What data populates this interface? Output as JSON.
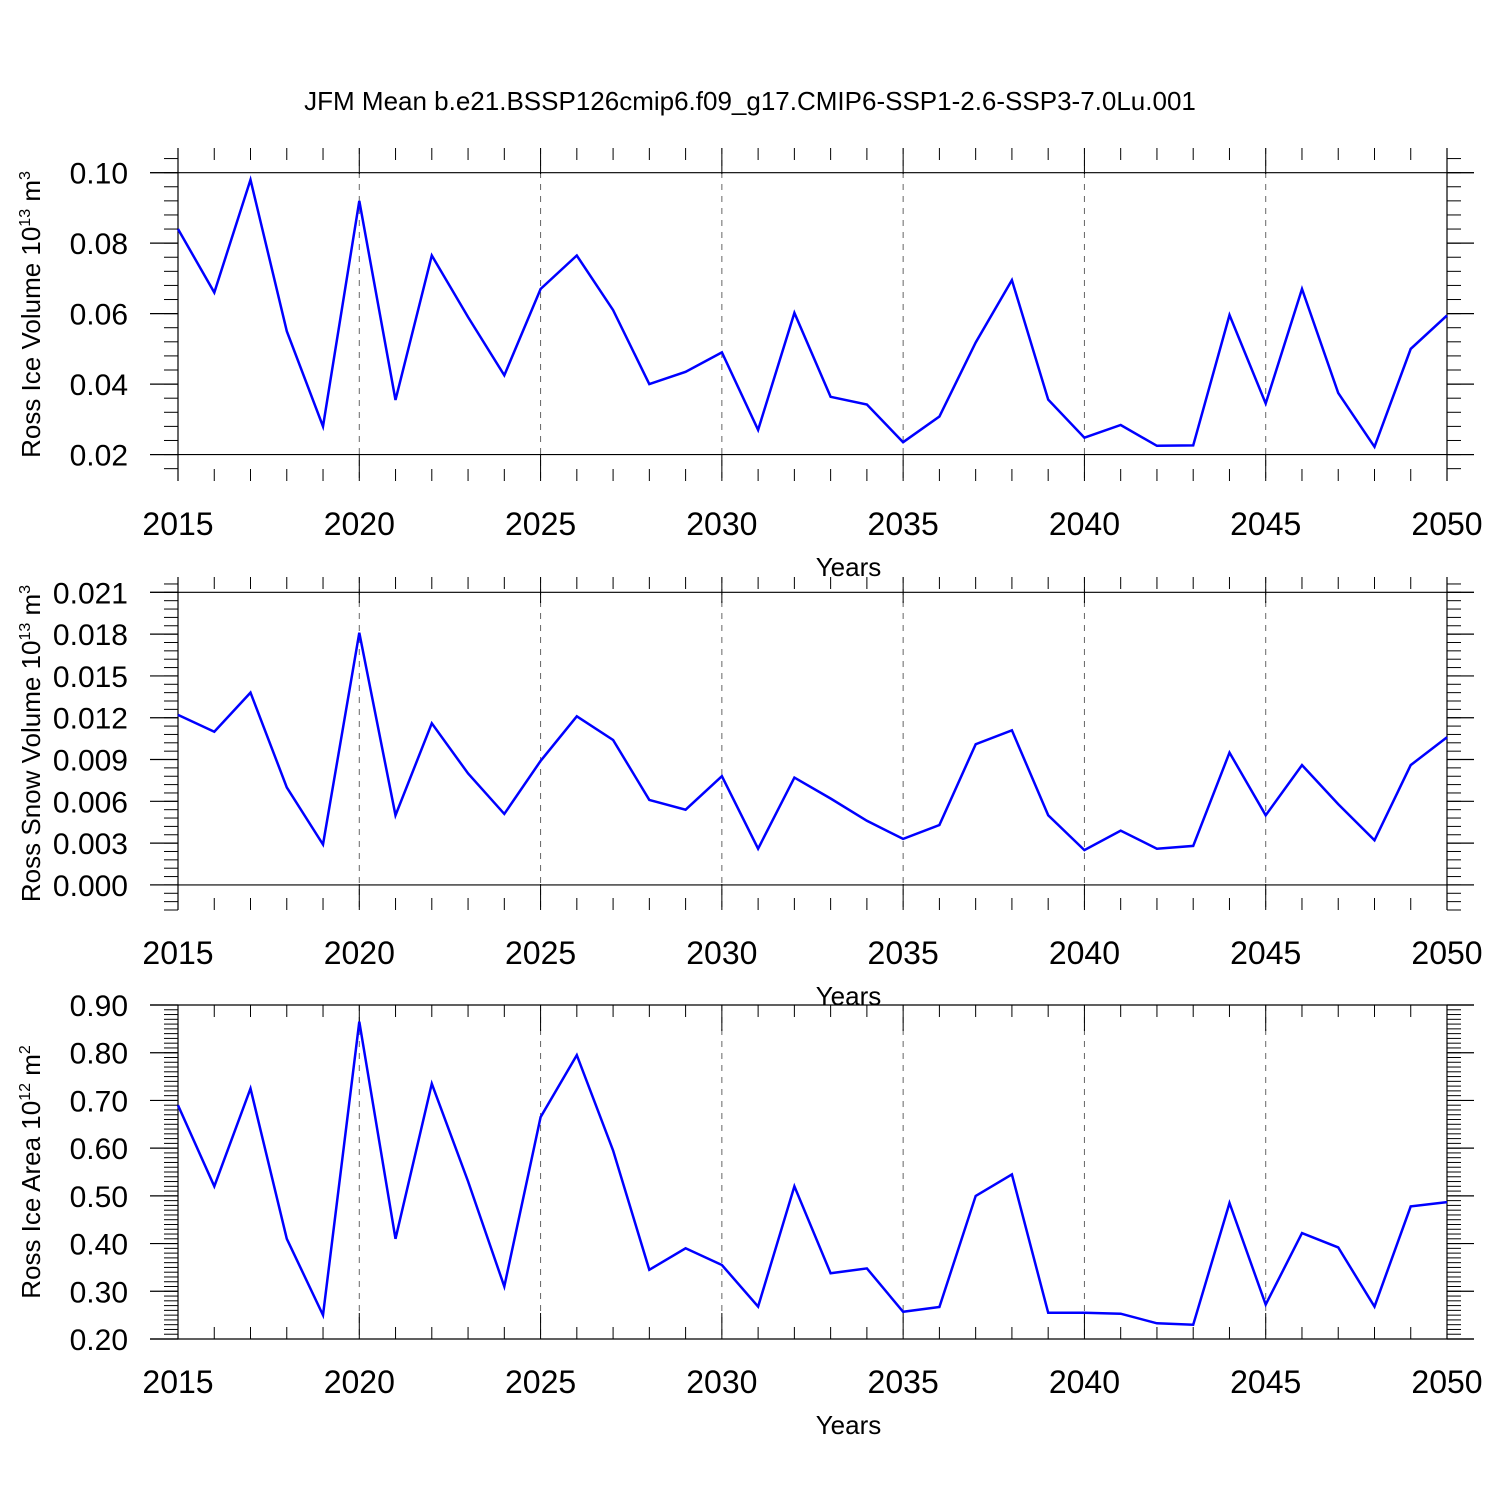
{
  "title": "JFM Mean b.e21.BSSP126cmip6.f09_g17.CMIP6-SSP1-2.6-SSP3-7.0Lu.001",
  "colors": {
    "line": "#0000ff",
    "axis": "#000000",
    "grid": "#666666",
    "background": "#ffffff"
  },
  "chart_data": [
    {
      "type": "line",
      "ylabel": "Ross Ice Volume 10",
      "ylabel_sup": "13",
      "ylabel_unit": "m",
      "ylabel_unit_sup": "3",
      "xlabel": "Years",
      "xlim": [
        2015,
        2050
      ],
      "ylim": [
        0.0125,
        0.107
      ],
      "xticks": [
        2015,
        2020,
        2025,
        2030,
        2035,
        2040,
        2045,
        2050
      ],
      "yticks": [
        "0.02",
        "0.04",
        "0.06",
        "0.08",
        "0.10"
      ],
      "grid": "vertical dashed at major x ticks",
      "series": [
        {
          "x": [
            2015,
            2016,
            2017,
            2018,
            2019,
            2020,
            2021,
            2022,
            2023,
            2024,
            2025,
            2026,
            2027,
            2028,
            2029,
            2030,
            2031,
            2032,
            2033,
            2034,
            2035,
            2036,
            2037,
            2038,
            2039,
            2040,
            2041,
            2042,
            2043,
            2044,
            2045,
            2046,
            2047,
            2048,
            2049,
            2050
          ],
          "values": [
            0.084,
            0.066,
            0.098,
            0.055,
            0.028,
            0.092,
            0.0355,
            0.0765,
            0.059,
            0.0425,
            0.067,
            0.0765,
            0.061,
            0.04,
            0.0435,
            0.049,
            0.027,
            0.0602,
            0.0364,
            0.0342,
            0.0235,
            0.0308,
            0.0518,
            0.0695,
            0.0356,
            0.0248,
            0.0284,
            0.0225,
            0.0226,
            0.0596,
            0.0345,
            0.067,
            0.0375,
            0.0222,
            0.05,
            0.0595
          ]
        }
      ]
    },
    {
      "type": "line",
      "ylabel": "Ross Snow Volume 10",
      "ylabel_sup": "13",
      "ylabel_unit": "m",
      "ylabel_unit_sup": "3",
      "xlabel": "Years",
      "xlim": [
        2015,
        2050
      ],
      "ylim": [
        -0.0018,
        0.0221
      ],
      "xticks": [
        2015,
        2020,
        2025,
        2030,
        2035,
        2040,
        2045,
        2050
      ],
      "yticks": [
        "0.000",
        "0.003",
        "0.006",
        "0.009",
        "0.012",
        "0.015",
        "0.018",
        "0.021"
      ],
      "grid": "vertical dashed at major x ticks",
      "series": [
        {
          "x": [
            2015,
            2016,
            2017,
            2018,
            2019,
            2020,
            2021,
            2022,
            2023,
            2024,
            2025,
            2026,
            2027,
            2028,
            2029,
            2030,
            2031,
            2032,
            2033,
            2034,
            2035,
            2036,
            2037,
            2038,
            2039,
            2040,
            2041,
            2042,
            2043,
            2044,
            2045,
            2046,
            2047,
            2048,
            2049,
            2050
          ],
          "values": [
            0.0122,
            0.011,
            0.0138,
            0.007,
            0.0029,
            0.0181,
            0.005,
            0.0116,
            0.008,
            0.0051,
            0.0089,
            0.0121,
            0.0104,
            0.0061,
            0.0054,
            0.0078,
            0.0026,
            0.0077,
            0.0062,
            0.0046,
            0.0033,
            0.0043,
            0.0101,
            0.0111,
            0.005,
            0.0025,
            0.0039,
            0.0026,
            0.0028,
            0.0095,
            0.005,
            0.0086,
            0.0058,
            0.0032,
            0.0086,
            0.0106
          ]
        }
      ]
    },
    {
      "type": "line",
      "ylabel": "Ross Ice Area 10",
      "ylabel_sup": "12",
      "ylabel_unit": "m",
      "ylabel_unit_sup": "2",
      "xlabel": "Years",
      "xlim": [
        2015,
        2050
      ],
      "ylim": [
        0.2,
        0.9
      ],
      "xticks": [
        2015,
        2020,
        2025,
        2030,
        2035,
        2040,
        2045,
        2050
      ],
      "yticks": [
        "0.20",
        "0.30",
        "0.40",
        "0.50",
        "0.60",
        "0.70",
        "0.80",
        "0.90"
      ],
      "grid": "vertical dashed at major x ticks",
      "series": [
        {
          "x": [
            2015,
            2016,
            2017,
            2018,
            2019,
            2020,
            2021,
            2022,
            2023,
            2024,
            2025,
            2026,
            2027,
            2028,
            2029,
            2030,
            2031,
            2032,
            2033,
            2034,
            2035,
            2036,
            2037,
            2038,
            2039,
            2040,
            2041,
            2042,
            2043,
            2044,
            2045,
            2046,
            2047,
            2048,
            2049,
            2050
          ],
          "values": [
            0.69,
            0.52,
            0.725,
            0.41,
            0.25,
            0.865,
            0.41,
            0.735,
            0.53,
            0.31,
            0.665,
            0.795,
            0.595,
            0.345,
            0.39,
            0.355,
            0.268,
            0.52,
            0.338,
            0.348,
            0.257,
            0.267,
            0.5,
            0.545,
            0.255,
            0.255,
            0.253,
            0.233,
            0.23,
            0.485,
            0.272,
            0.422,
            0.392,
            0.268,
            0.478,
            0.487
          ]
        }
      ]
    }
  ]
}
